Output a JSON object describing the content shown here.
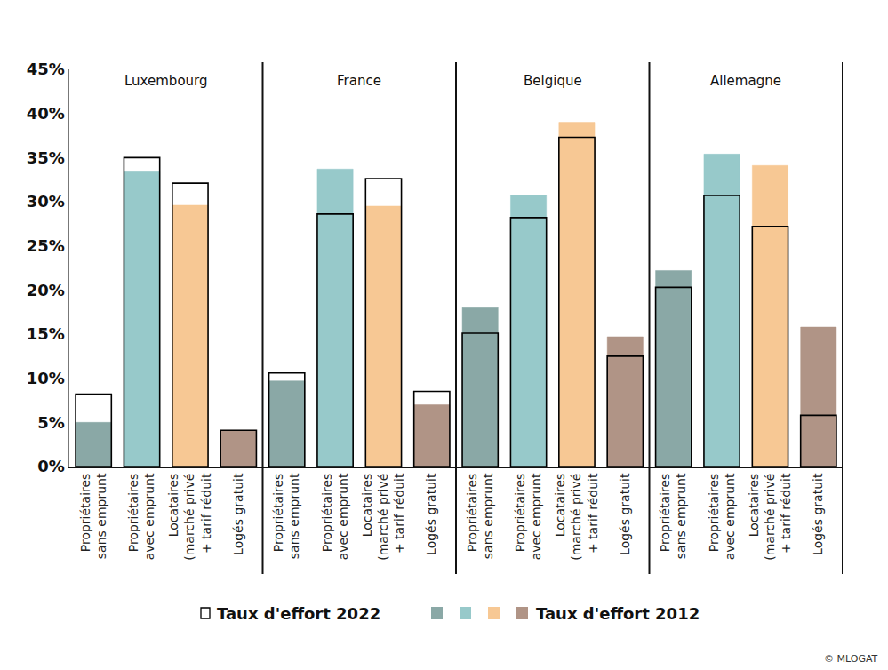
{
  "chart_data": {
    "type": "bar",
    "groups": [
      "Luxembourg",
      "France",
      "Belgique",
      "Allemagne"
    ],
    "categories": [
      "Propriétaires\nsans emprunt",
      "Propriétaires\navec emprunt",
      "Locataires\n(marché privé\n+ tarif réduit",
      "Logés gratuit",
      "Propriétaires\nsans emprunt",
      "Propriétaires\navec emprunt",
      "Locataires\n(marché privé\n+ tarif réduit",
      "Logés gratuit",
      "Propriétaires\nsans emprunt",
      "Propriétaires\navec emprunt",
      "Locataires\n(marché privé\n+ tarif réduit",
      "Logés gratuit",
      "Propriétaires\nsans emprunt",
      "Propriétaires\navec emprunt",
      "Locataires\n(marché privé\n+ tarif réduit",
      "Logés gratuit"
    ],
    "series": [
      {
        "name": "Taux d'effort 2022",
        "marker": "outline",
        "color": "#000000",
        "values": [
          8.2,
          35.0,
          32.1,
          4.1,
          10.6,
          28.6,
          32.6,
          8.5,
          15.1,
          28.2,
          37.3,
          12.5,
          20.3,
          30.7,
          27.2,
          5.8
        ]
      },
      {
        "name": "Taux d'effort 2012",
        "marker": "filled",
        "colors": [
          "#8aa8a6",
          "#97c9ca",
          "#f7c894",
          "#b09486",
          "#8aa8a6",
          "#97c9ca",
          "#f7c894",
          "#b09486",
          "#8aa8a6",
          "#97c9ca",
          "#f7c894",
          "#b09486",
          "#8aa8a6",
          "#97c9ca",
          "#f7c894",
          "#b09486"
        ],
        "values": [
          5.0,
          33.4,
          29.6,
          4.1,
          9.7,
          33.7,
          29.5,
          7.0,
          18.0,
          30.7,
          39.0,
          14.7,
          22.2,
          35.4,
          34.1,
          15.8
        ]
      }
    ],
    "ylim": [
      0,
      45
    ],
    "yticks": [
      {
        "value": 0,
        "label": "0%"
      },
      {
        "value": 5,
        "label": "5%"
      },
      {
        "value": 10,
        "label": "10%"
      },
      {
        "value": 15,
        "label": "15%"
      },
      {
        "value": 20,
        "label": "20%"
      },
      {
        "value": 25,
        "label": "25%"
      },
      {
        "value": 30,
        "label": "30%"
      },
      {
        "value": 35,
        "label": "35%"
      },
      {
        "value": 40,
        "label": "40%"
      },
      {
        "value": 45,
        "label": "45%"
      }
    ],
    "grid": false,
    "source": "© MLOGAT"
  }
}
